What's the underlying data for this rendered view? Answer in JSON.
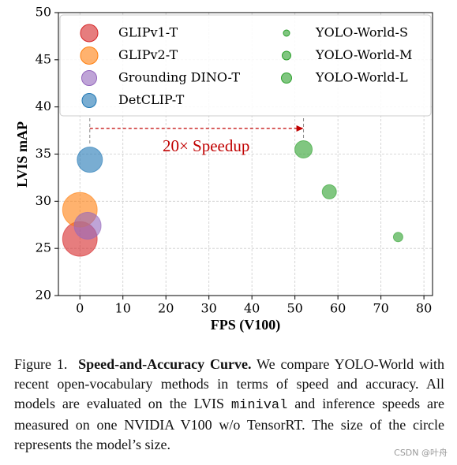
{
  "chart_data": {
    "type": "scatter",
    "xlabel": "FPS (V100)",
    "ylabel": "LVIS mAP",
    "xlim": [
      -5,
      82
    ],
    "ylim": [
      20,
      50
    ],
    "xticks": [
      0,
      10,
      20,
      30,
      40,
      50,
      60,
      70,
      80
    ],
    "yticks": [
      20,
      25,
      30,
      35,
      40,
      45,
      50
    ],
    "grid": true,
    "legend": "upper left",
    "series": [
      {
        "name": "GLIPv1-T",
        "color": "#d62728",
        "x": [
          0
        ],
        "values": [
          26.0
        ],
        "size": [
          480
        ]
      },
      {
        "name": "GLIPv2-T",
        "color": "#ff7f0e",
        "x": [
          0
        ],
        "values": [
          29.1
        ],
        "size": [
          480
        ]
      },
      {
        "name": "Grounding DINO-T",
        "color": "#9467bd",
        "x": [
          1.8
        ],
        "values": [
          27.4
        ],
        "size": [
          290
        ]
      },
      {
        "name": "DetCLIP-T",
        "color": "#1f77b4",
        "x": [
          2.3
        ],
        "values": [
          34.4
        ],
        "size": [
          256
        ]
      },
      {
        "name": "YOLO-World-S",
        "color": "#2ca02c",
        "x": [
          74
        ],
        "values": [
          26.2
        ],
        "size": [
          36
        ]
      },
      {
        "name": "YOLO-World-M",
        "color": "#2ca02c",
        "x": [
          58
        ],
        "values": [
          31.0
        ],
        "size": [
          81
        ]
      },
      {
        "name": "YOLO-World-L",
        "color": "#2ca02c",
        "x": [
          52
        ],
        "values": [
          35.5
        ],
        "size": [
          121
        ]
      }
    ],
    "annotation": "20× Speedup"
  },
  "caption": {
    "label": "Figure 1.",
    "title": "Speed-and-Accuracy Curve.",
    "text_before": "We compare YOLO-World with recent open-vocabulary methods in terms of speed and accuracy. All models are evaluated on the LVIS",
    "code": "minival",
    "text_after": "and inference speeds are measured on one NVIDIA V100 w/o TensorRT. The size of the circle represents the model’s size."
  },
  "watermark": "CSDN @叶舟"
}
